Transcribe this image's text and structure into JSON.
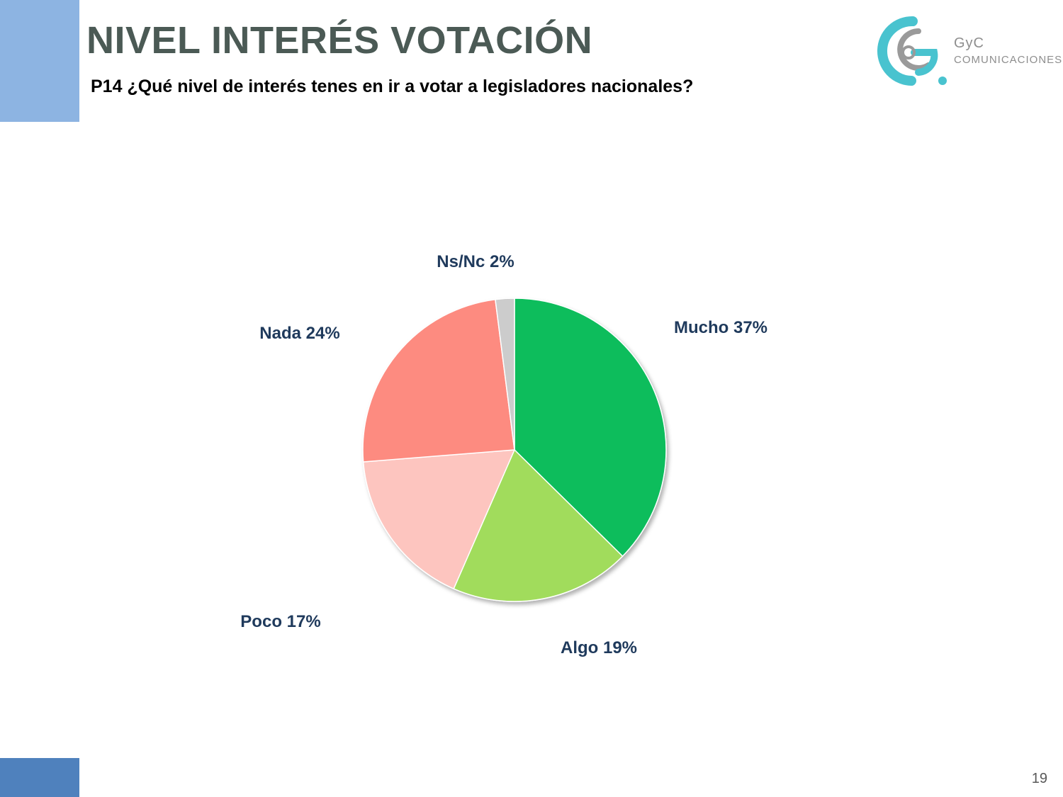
{
  "slide": {
    "title": "NIVEL INTERÉS VOTACIÓN",
    "question": "P14 ¿Qué nivel de interés tenes en ir a votar a legisladores nacionales?",
    "page_number": "19"
  },
  "logo": {
    "brand_top": "GyC",
    "brand_bottom": "COMUNICACIONES"
  },
  "chart_data": {
    "type": "pie",
    "title": "",
    "legend": "none",
    "slices": [
      {
        "label": "Mucho",
        "value": 37,
        "display": "Mucho 37%",
        "color": "#08bd5c"
      },
      {
        "label": "Algo",
        "value": 19,
        "display": "Algo 19%",
        "color": "#a1dc5c"
      },
      {
        "label": "Poco",
        "value": 17,
        "display": "Poco 17%",
        "color": "#fdc5bf"
      },
      {
        "label": "Nada",
        "value": 24,
        "display": "Nada 24%",
        "color": "#fd8b80"
      },
      {
        "label": "Ns/Nc",
        "value": 2,
        "display": "Ns/Nc 2%",
        "color": "#cccccc"
      }
    ]
  }
}
